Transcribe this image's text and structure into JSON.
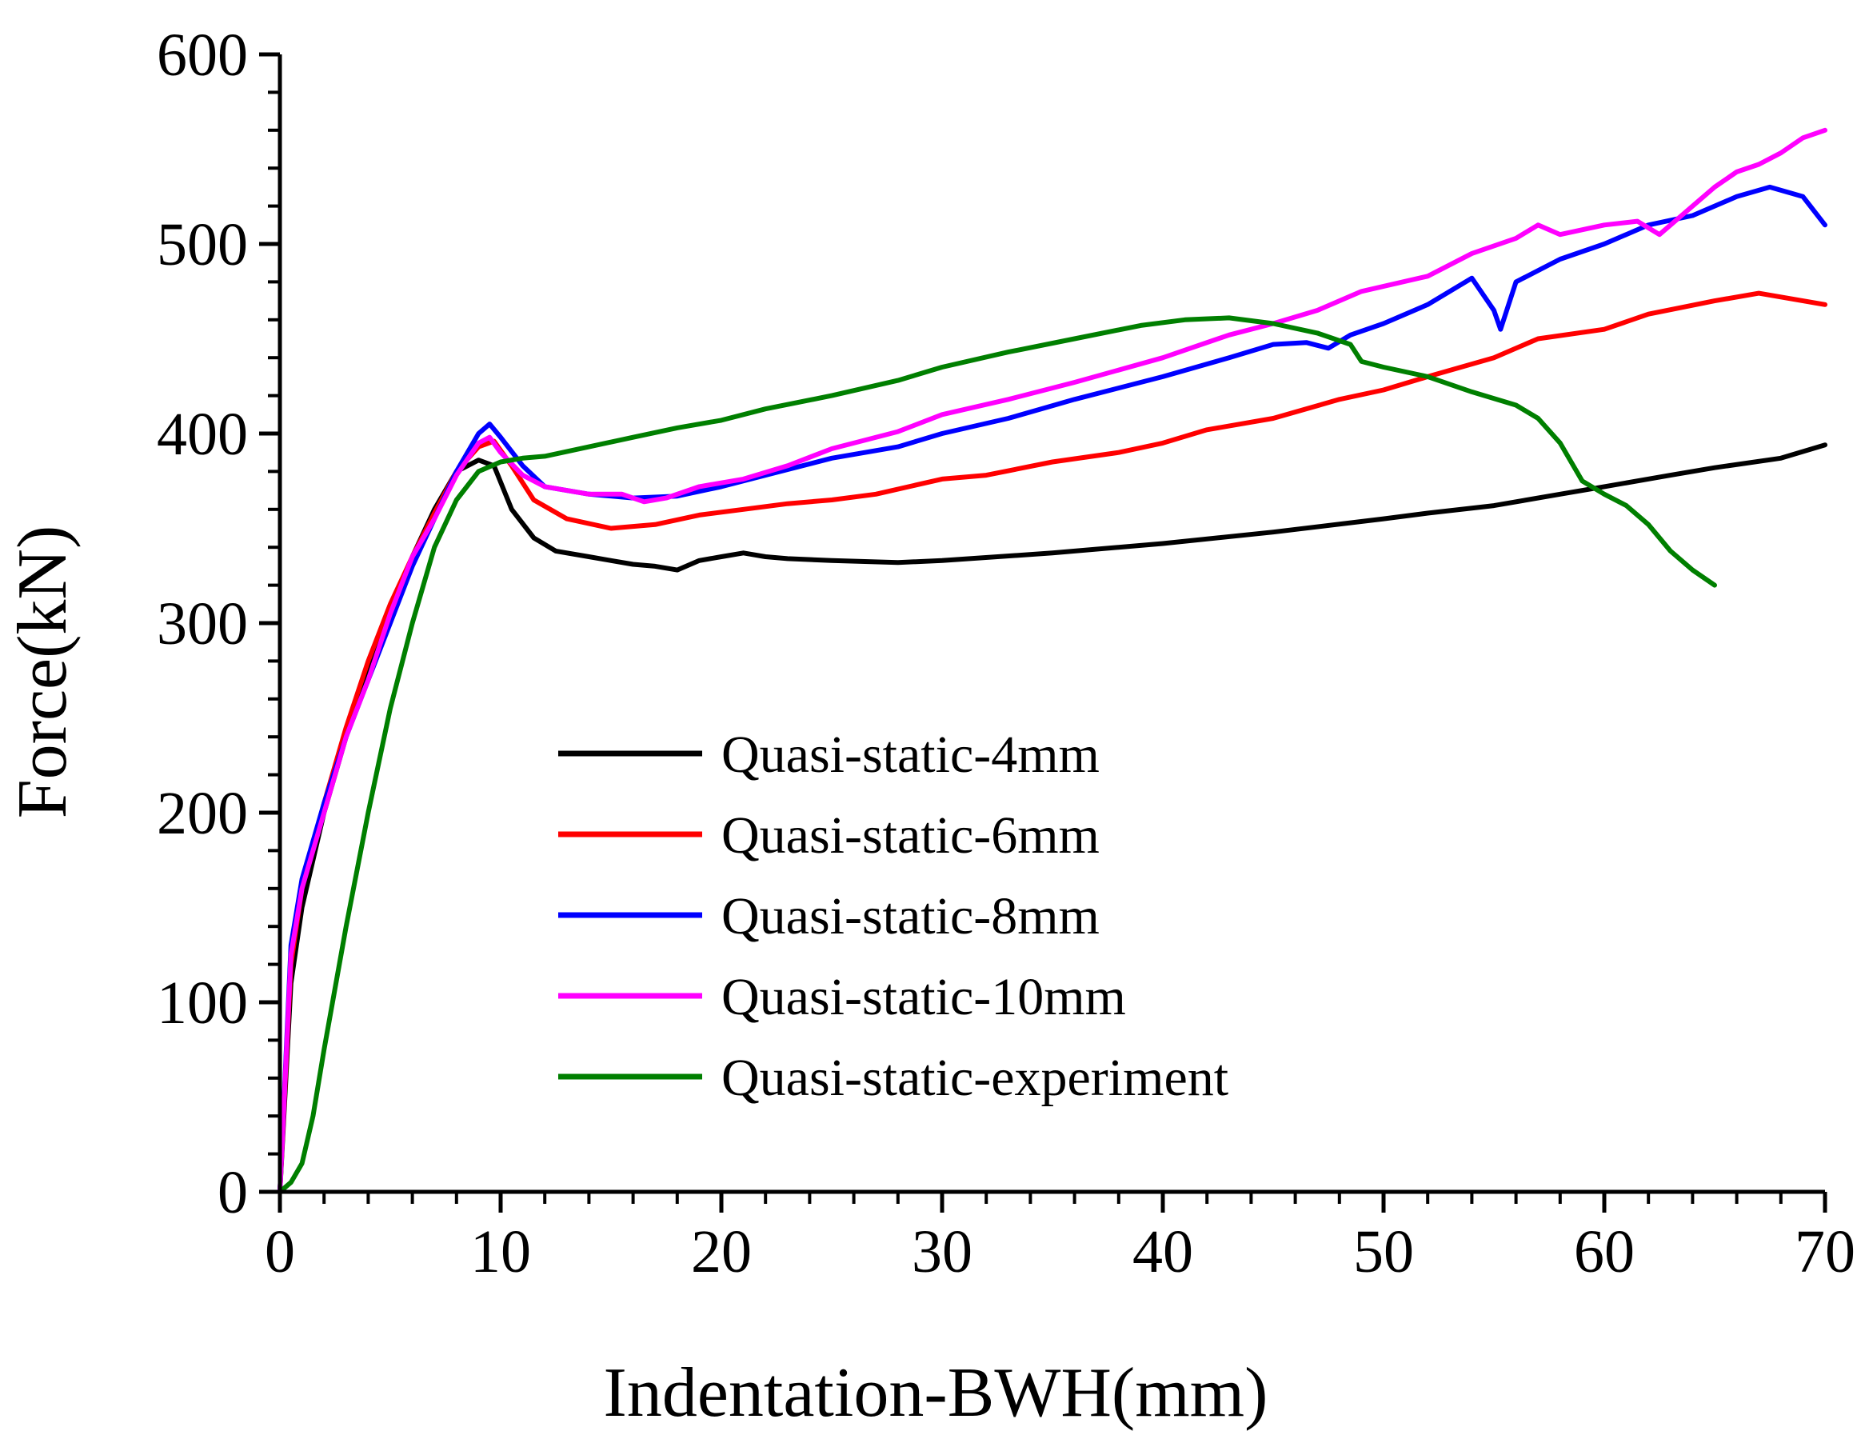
{
  "chart_data": {
    "type": "line",
    "title": "",
    "xlabel": "Indentation-BWH(mm)",
    "ylabel": "Force(kN)",
    "xlim": [
      0,
      70
    ],
    "ylim": [
      0,
      600
    ],
    "xticks": [
      0,
      10,
      20,
      30,
      40,
      50,
      60,
      70
    ],
    "yticks": [
      0,
      100,
      200,
      300,
      400,
      500,
      600
    ],
    "grid": false,
    "legend_position": "center",
    "series": [
      {
        "name": "Quasi-static-4mm",
        "color": "#000000",
        "x": [
          0,
          0.5,
          1,
          2,
          3,
          4,
          5,
          6,
          7,
          8,
          9,
          9.7,
          10.5,
          11.5,
          12.5,
          14,
          15,
          16,
          17,
          18,
          19,
          20,
          21,
          22,
          23,
          25,
          28,
          30,
          35,
          40,
          45,
          50,
          52,
          55,
          58,
          60,
          63,
          65,
          68,
          70
        ],
        "y": [
          0,
          110,
          150,
          200,
          240,
          275,
          305,
          335,
          360,
          380,
          386,
          383,
          360,
          345,
          338,
          335,
          333,
          331,
          330,
          328,
          333,
          335,
          337,
          335,
          334,
          333,
          332,
          333,
          337,
          342,
          348,
          355,
          358,
          362,
          368,
          372,
          378,
          382,
          387,
          394
        ]
      },
      {
        "name": "Quasi-static-6mm",
        "color": "#ff0000",
        "x": [
          0,
          0.5,
          1,
          2,
          3,
          4,
          5,
          6,
          7,
          8,
          9,
          9.7,
          10.5,
          11.5,
          13,
          15,
          17,
          19,
          21,
          23,
          25,
          27,
          30,
          32,
          35,
          38,
          40,
          42,
          45,
          48,
          50,
          52,
          55,
          57,
          60,
          62,
          65,
          67,
          69,
          70
        ],
        "y": [
          0,
          120,
          160,
          205,
          245,
          280,
          310,
          335,
          358,
          380,
          393,
          396,
          383,
          365,
          355,
          350,
          352,
          357,
          360,
          363,
          365,
          368,
          376,
          378,
          385,
          390,
          395,
          402,
          408,
          418,
          423,
          430,
          440,
          450,
          455,
          463,
          470,
          474,
          470,
          468
        ]
      },
      {
        "name": "Quasi-static-8mm",
        "color": "#0000ff",
        "x": [
          0,
          0.5,
          1,
          2,
          3,
          4,
          5,
          6,
          7,
          8,
          9,
          9.5,
          10,
          11,
          12,
          14,
          16,
          18,
          20,
          22,
          25,
          28,
          30,
          33,
          36,
          40,
          43,
          45,
          46.5,
          47.5,
          48.5,
          50,
          52,
          54,
          55,
          55.3,
          56,
          58,
          60,
          62,
          64,
          66,
          67.5,
          69,
          70
        ],
        "y": [
          0,
          130,
          165,
          205,
          240,
          270,
          300,
          330,
          355,
          380,
          400,
          405,
          398,
          383,
          372,
          368,
          366,
          367,
          372,
          378,
          387,
          393,
          400,
          408,
          418,
          430,
          440,
          447,
          448,
          445,
          452,
          458,
          468,
          482,
          465,
          455,
          480,
          492,
          500,
          510,
          515,
          525,
          530,
          525,
          510
        ]
      },
      {
        "name": "Quasi-static-10mm",
        "color": "#ff00ff",
        "x": [
          0,
          0.5,
          1,
          2,
          3,
          4,
          5,
          6,
          7,
          8,
          9,
          9.5,
          10,
          11,
          12,
          14,
          15.5,
          16.5,
          17.5,
          19,
          21,
          23,
          25,
          28,
          30,
          33,
          36,
          40,
          43,
          45,
          47,
          49,
          52,
          54,
          56,
          57,
          58,
          60,
          61.5,
          62.5,
          63.5,
          65,
          66,
          67,
          68,
          69,
          70
        ],
        "y": [
          0,
          125,
          160,
          200,
          240,
          270,
          305,
          335,
          355,
          378,
          395,
          398,
          390,
          378,
          372,
          368,
          368,
          364,
          366,
          372,
          376,
          383,
          392,
          401,
          410,
          418,
          427,
          440,
          452,
          458,
          465,
          475,
          483,
          495,
          503,
          510,
          505,
          510,
          512,
          505,
          515,
          530,
          538,
          542,
          548,
          556,
          560
        ]
      },
      {
        "name": "Quasi-static-experiment",
        "color": "#007f00",
        "x": [
          0,
          0.5,
          1,
          1.5,
          2,
          3,
          4,
          5,
          6,
          7,
          8,
          9,
          10,
          11,
          12,
          14,
          16,
          18,
          20,
          22,
          25,
          28,
          30,
          33,
          36,
          39,
          41,
          43,
          45,
          47,
          48.5,
          49,
          50,
          52,
          54,
          56,
          57,
          58,
          59,
          60,
          61,
          62,
          63,
          64,
          65
        ],
        "y": [
          0,
          5,
          15,
          40,
          75,
          140,
          200,
          255,
          300,
          340,
          365,
          380,
          385,
          387,
          388,
          393,
          398,
          403,
          407,
          413,
          420,
          428,
          435,
          443,
          450,
          457,
          460,
          461,
          458,
          453,
          447,
          438,
          435,
          430,
          422,
          415,
          408,
          395,
          375,
          368,
          362,
          352,
          338,
          328,
          320
        ]
      }
    ]
  }
}
